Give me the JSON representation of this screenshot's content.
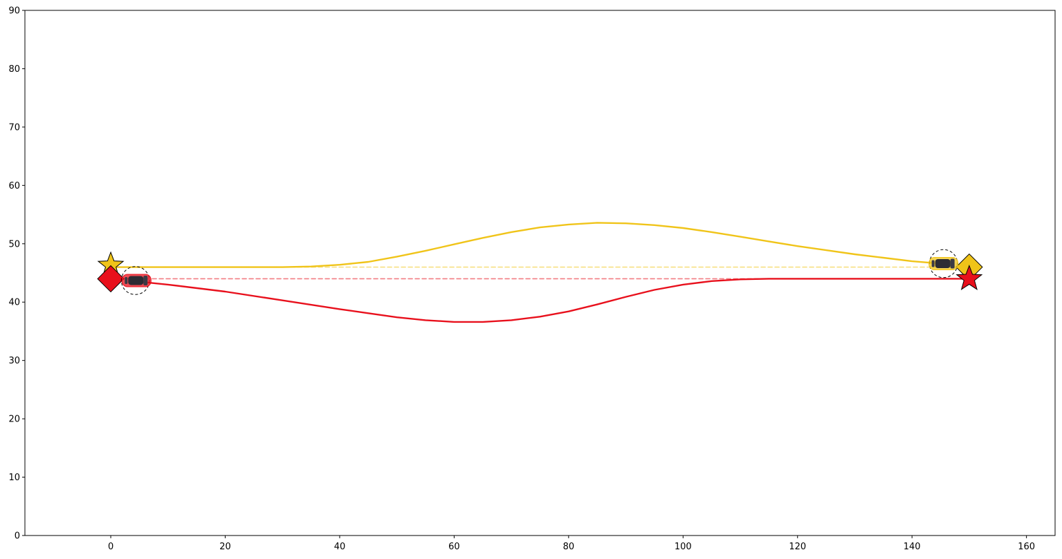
{
  "chart_data": {
    "type": "line",
    "title": "",
    "xlabel": "",
    "ylabel": "",
    "xlim": [
      -15,
      165
    ],
    "ylim": [
      0,
      90
    ],
    "xticks": [
      0,
      20,
      40,
      60,
      80,
      100,
      120,
      140,
      160
    ],
    "yticks": [
      0,
      10,
      20,
      30,
      40,
      50,
      60,
      70,
      80,
      90
    ],
    "grid": false,
    "legend": "none",
    "series": [
      {
        "color": "#f0c419",
        "style": "solid",
        "x": [
          0,
          10,
          20,
          30,
          35,
          40,
          45,
          50,
          55,
          60,
          65,
          70,
          75,
          80,
          85,
          90,
          95,
          100,
          105,
          110,
          115,
          120,
          125,
          130,
          135,
          140,
          145
        ],
        "y": [
          46.0,
          46.0,
          46.0,
          46.0,
          46.1,
          46.4,
          46.9,
          47.8,
          48.8,
          49.9,
          51.0,
          52.0,
          52.8,
          53.3,
          53.6,
          53.5,
          53.2,
          52.7,
          52.0,
          51.2,
          50.4,
          49.6,
          48.9,
          48.2,
          47.6,
          47.0,
          46.6
        ]
      },
      {
        "color": "#e8101c",
        "style": "solid",
        "x": [
          5,
          10,
          20,
          30,
          40,
          45,
          50,
          55,
          60,
          65,
          70,
          75,
          80,
          85,
          90,
          95,
          100,
          105,
          110,
          115,
          120,
          130,
          140,
          150
        ],
        "y": [
          43.5,
          43.0,
          41.8,
          40.3,
          38.8,
          38.1,
          37.4,
          36.9,
          36.6,
          36.6,
          36.9,
          37.5,
          38.4,
          39.6,
          40.9,
          42.1,
          43.0,
          43.6,
          43.9,
          44.0,
          44.0,
          44.0,
          44.0,
          44.0
        ]
      },
      {
        "color": "#f0c419",
        "style": "dashed",
        "opacity": 0.55,
        "x": [
          0,
          150
        ],
        "y": [
          46,
          46
        ]
      },
      {
        "color": "#e8101c",
        "style": "dashed",
        "opacity": 0.55,
        "x": [
          0,
          150
        ],
        "y": [
          44,
          44
        ]
      }
    ],
    "markers": [
      {
        "shape": "star",
        "color": "#f0c419",
        "x": 0,
        "y": 46.3
      },
      {
        "shape": "diamond",
        "color": "#e8101c",
        "x": 0,
        "y": 44
      },
      {
        "shape": "diamond",
        "color": "#f0c419",
        "x": 150,
        "y": 46
      },
      {
        "shape": "star",
        "color": "#e8101c",
        "x": 150,
        "y": 44
      }
    ],
    "vehicles": [
      {
        "color": "#e8101c",
        "x": 4.5,
        "y": 43.7,
        "heading": 0
      },
      {
        "color": "#f0c419",
        "x": 145.5,
        "y": 46.6,
        "heading": 0
      }
    ],
    "safety_circles": [
      {
        "x": 4.3,
        "y": 43.7,
        "r": 2.4
      },
      {
        "x": 145.5,
        "y": 46.6,
        "r": 2.4
      }
    ]
  }
}
